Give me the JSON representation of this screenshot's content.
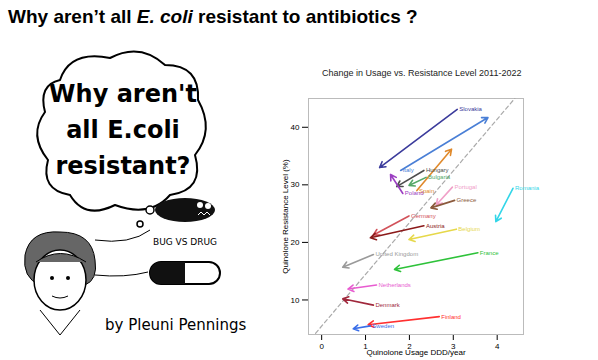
{
  "slide": {
    "title": "Why aren’t all E. coli resistant to antibiotics ?",
    "title_italic": "E. coli",
    "cartoon": {
      "bubble_lines": [
        "Why aren't",
        "all E.coli",
        "resistant?"
      ],
      "caption": "BUG VS DRUG",
      "credit": "by Pleuni Pennings"
    }
  },
  "chart_data": {
    "type": "arrow",
    "title": "Change in Usage vs. Resistance Level 2011-2022",
    "x_label": "Quinolone Usage DDD/year",
    "y_label": "Quinolone Resistance Level (%)",
    "xlim": [
      -0.3,
      4.6
    ],
    "ylim": [
      4,
      45
    ],
    "xticks": [
      0,
      1,
      2,
      3,
      4
    ],
    "yticks": [
      10,
      20,
      30,
      40
    ],
    "grid": false,
    "reference_line": {
      "x": [
        -0.14,
        4.5
      ],
      "y": [
        4.2,
        45.9
      ],
      "color": "#aaaaaa",
      "line_style": "dashed"
    },
    "series": [
      {
        "name": "Slovakia",
        "color": "#3b3b9c",
        "x": [
          3.09,
          1.32
        ],
        "y": [
          43.1,
          33.0
        ]
      },
      {
        "name": "Italy",
        "color": "#4a7fd6",
        "x": [
          1.8,
          3.79
        ],
        "y": [
          32.5,
          41.7
        ]
      },
      {
        "name": "Spain",
        "color": "#e08a2c",
        "x": [
          2.17,
          2.96
        ],
        "y": [
          29.0,
          36.2
        ]
      },
      {
        "name": "Hungary",
        "color": "#4d4d4d",
        "x": [
          2.33,
          1.71
        ],
        "y": [
          32.5,
          29.7
        ]
      },
      {
        "name": "Bulgaria",
        "color": "#55a868",
        "x": [
          2.38,
          1.99
        ],
        "y": [
          31.3,
          29.9
        ]
      },
      {
        "name": "Poland",
        "color": "#9b3fc2",
        "x": [
          1.85,
          1.57
        ],
        "y": [
          28.5,
          31.8
        ]
      },
      {
        "name": "Portugal",
        "color": "#f0a0c8",
        "x": [
          2.98,
          2.61
        ],
        "y": [
          29.6,
          26.5
        ]
      },
      {
        "name": "Romania",
        "color": "#33d6e8",
        "x": [
          4.36,
          3.97
        ],
        "y": [
          29.4,
          23.6
        ]
      },
      {
        "name": "Greece",
        "color": "#8b5a3c",
        "x": [
          3.03,
          2.49
        ],
        "y": [
          27.3,
          26.0
        ]
      },
      {
        "name": "Germany",
        "color": "#d2525a",
        "x": [
          1.99,
          1.18
        ],
        "y": [
          24.6,
          21.3
        ]
      },
      {
        "name": "Austria",
        "color": "#8b1a1a",
        "x": [
          2.33,
          1.11
        ],
        "y": [
          22.9,
          20.8
        ]
      },
      {
        "name": "Belgium",
        "color": "#e6d84a",
        "x": [
          3.07,
          1.99
        ],
        "y": [
          22.3,
          20.5
        ]
      },
      {
        "name": "France",
        "color": "#2ec23a",
        "x": [
          3.56,
          1.66
        ],
        "y": [
          18.2,
          15.3
        ]
      },
      {
        "name": "United Kingdom",
        "color": "#9a9a9a",
        "x": [
          1.18,
          0.48
        ],
        "y": [
          17.9,
          15.7
        ]
      },
      {
        "name": "Netherlands",
        "color": "#e85bd0",
        "x": [
          1.25,
          0.6
        ],
        "y": [
          12.6,
          11.9
        ]
      },
      {
        "name": "Denmark",
        "color": "#a0283c",
        "x": [
          1.18,
          0.48
        ],
        "y": [
          9.1,
          10.2
        ]
      },
      {
        "name": "Finland",
        "color": "#ff3030",
        "x": [
          2.68,
          1.06
        ],
        "y": [
          7.1,
          5.7
        ]
      },
      {
        "name": "Sweden",
        "color": "#3a6ee8",
        "x": [
          1.11,
          0.72
        ],
        "y": [
          5.5,
          5.0
        ]
      }
    ]
  }
}
